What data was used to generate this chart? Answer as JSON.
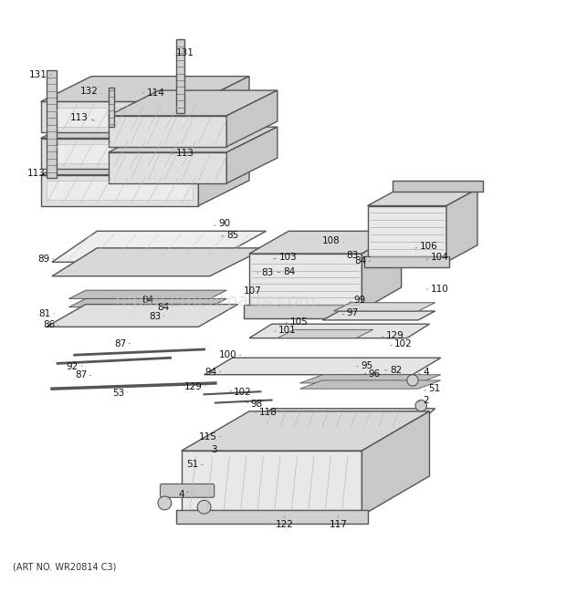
{
  "title": "",
  "footer": "(ART NO. WR20814 C3)",
  "bg_color": "#ffffff",
  "line_color": "#555555",
  "label_color": "#111111",
  "label_fontsize": 7.5,
  "footer_fontsize": 7,
  "watermark": "replacementparts.com",
  "watermark_color": "#cccccc",
  "figsize": [
    6.2,
    6.61
  ],
  "dpi": 100
}
